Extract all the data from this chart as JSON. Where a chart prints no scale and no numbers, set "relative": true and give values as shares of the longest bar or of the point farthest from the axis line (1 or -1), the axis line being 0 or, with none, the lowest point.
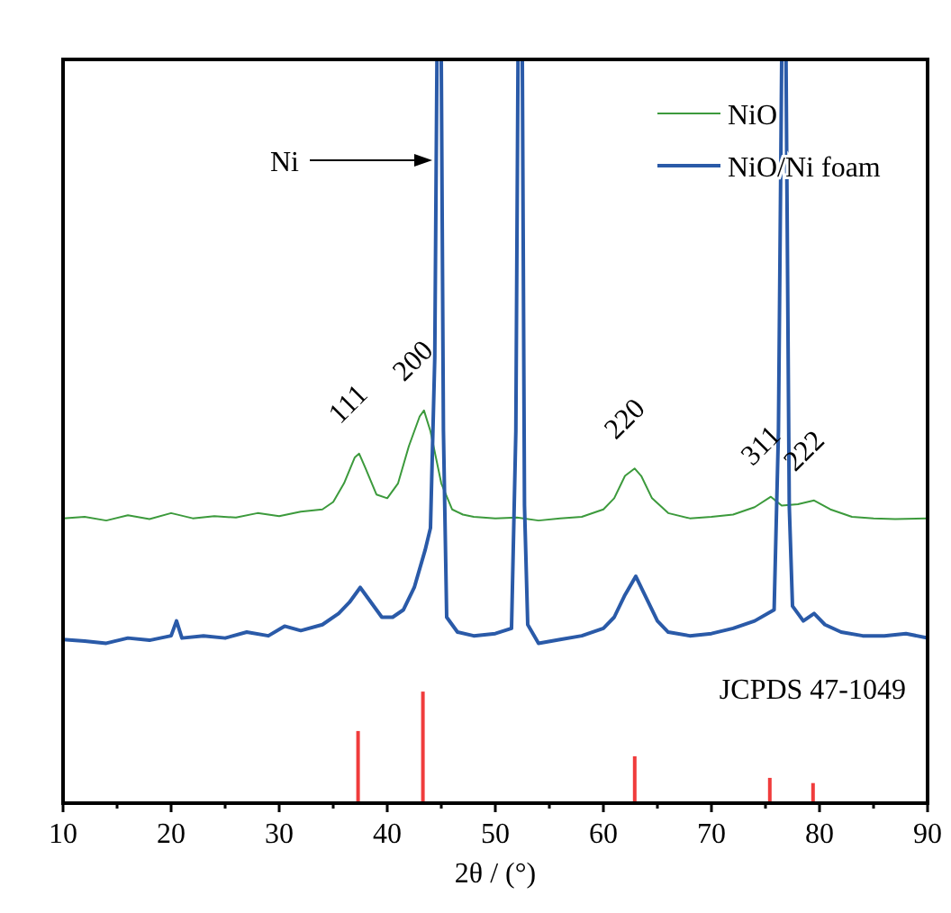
{
  "chart_data": {
    "type": "line",
    "relative": true,
    "xlabel": "2θ / (°)",
    "xlim": [
      10,
      90
    ],
    "xticks": [
      10,
      {
        "value": 15,
        "label": null
      },
      20,
      {
        "value": 25,
        "label": null
      },
      30,
      {
        "value": 35,
        "label": null
      },
      40,
      {
        "value": 45,
        "label": null
      },
      50,
      {
        "value": 55,
        "label": null
      },
      60,
      {
        "value": 65,
        "label": null
      },
      70,
      {
        "value": 75,
        "label": null
      },
      80,
      {
        "value": 85,
        "label": null
      },
      90
    ],
    "tick_labels": "x",
    "legend": "top right",
    "grid": false,
    "series": [
      {
        "name": "NiO",
        "color": "#3c9a3c",
        "x": [
          10,
          12,
          14,
          16,
          18,
          20,
          22,
          24,
          26,
          28,
          30,
          32,
          34,
          35,
          36,
          37,
          37.4,
          38,
          39,
          40,
          41,
          42,
          43,
          43.4,
          44,
          45,
          46,
          47,
          48,
          50,
          52,
          54,
          56,
          58,
          60,
          61,
          62,
          62.9,
          63.5,
          64.5,
          66,
          68,
          70,
          72,
          74,
          75.5,
          76.5,
          78,
          79.5,
          81,
          83,
          85,
          87,
          90
        ],
        "values": [
          0.383,
          0.385,
          0.38,
          0.387,
          0.382,
          0.39,
          0.383,
          0.386,
          0.384,
          0.39,
          0.386,
          0.392,
          0.395,
          0.405,
          0.43,
          0.465,
          0.47,
          0.45,
          0.415,
          0.41,
          0.43,
          0.48,
          0.52,
          0.528,
          0.5,
          0.43,
          0.395,
          0.388,
          0.385,
          0.383,
          0.384,
          0.38,
          0.383,
          0.385,
          0.395,
          0.41,
          0.44,
          0.45,
          0.44,
          0.41,
          0.39,
          0.383,
          0.385,
          0.388,
          0.398,
          0.412,
          0.4,
          0.402,
          0.407,
          0.395,
          0.385,
          0.383,
          0.382,
          0.383
        ]
      },
      {
        "name": "NiO/Ni foam",
        "color": "#2a5aa8",
        "x": [
          10,
          12,
          14,
          16,
          18,
          20,
          20.5,
          21,
          23,
          25,
          27,
          29,
          30.5,
          32,
          34,
          35.5,
          36.5,
          37.5,
          38.5,
          39.5,
          40.5,
          41.5,
          42.5,
          43.5,
          44,
          44.4,
          44.6,
          45,
          45.2,
          45.5,
          46.5,
          48,
          50,
          51.5,
          51.9,
          52.1,
          52.5,
          52.7,
          53,
          54,
          56,
          58,
          60,
          61,
          62,
          63,
          64,
          65,
          66,
          68,
          70,
          72,
          74,
          75.8,
          76.2,
          76.5,
          76.9,
          77.2,
          77.5,
          78.5,
          79.5,
          80.5,
          82,
          84,
          86,
          88,
          90
        ],
        "values": [
          0.22,
          0.218,
          0.215,
          0.222,
          0.219,
          0.225,
          0.245,
          0.222,
          0.225,
          0.222,
          0.23,
          0.225,
          0.238,
          0.232,
          0.24,
          0.255,
          0.27,
          0.29,
          0.27,
          0.25,
          0.25,
          0.26,
          0.29,
          0.34,
          0.37,
          0.6,
          1,
          1,
          0.5,
          0.25,
          0.23,
          0.225,
          0.228,
          0.235,
          0.5,
          1,
          1,
          0.4,
          0.24,
          0.215,
          0.22,
          0.225,
          0.235,
          0.25,
          0.28,
          0.305,
          0.275,
          0.245,
          0.23,
          0.225,
          0.228,
          0.235,
          0.245,
          0.26,
          0.5,
          1,
          1,
          0.4,
          0.265,
          0.245,
          0.255,
          0.24,
          0.23,
          0.225,
          0.225,
          0.228,
          0.222
        ]
      },
      {
        "type": "bar",
        "color": "#f03c3c",
        "x": [
          37.3,
          43.3,
          62.9,
          75.4,
          79.4
        ],
        "values": [
          0.097,
          0.15,
          0.063,
          0.034,
          0.027
        ]
      }
    ],
    "annotations": [
      {
        "text": "111",
        "x": 37.3,
        "y": 0.47
      },
      {
        "text": "200",
        "x": 43.3,
        "y": 0.528
      },
      {
        "text": "220",
        "x": 62.9,
        "y": 0.45
      },
      {
        "text": "311",
        "x": 75.5,
        "y": 0.414
      },
      {
        "text": "222",
        "x": 79.5,
        "y": 0.407
      },
      "Ni",
      "JCPDS 47-1049"
    ]
  }
}
